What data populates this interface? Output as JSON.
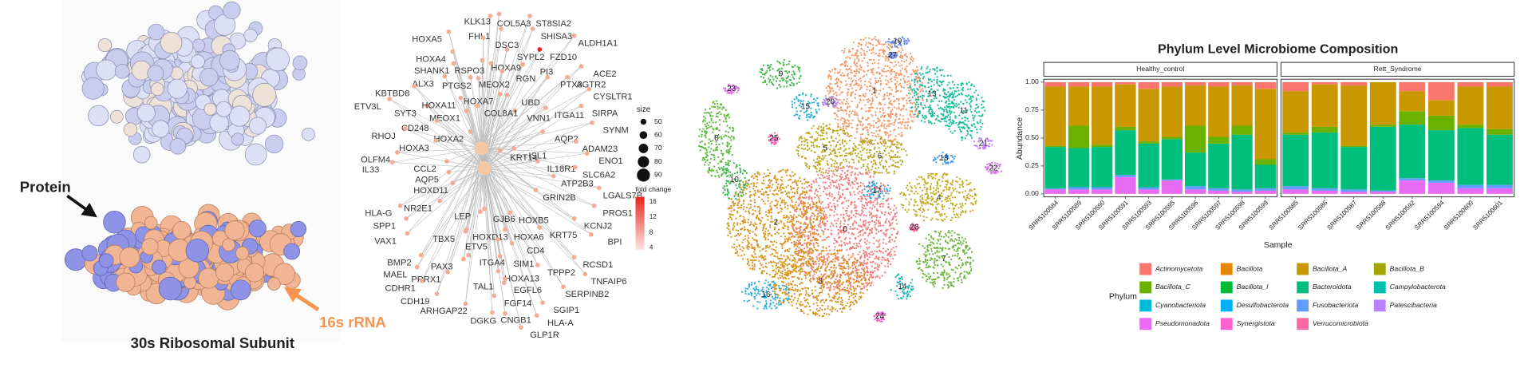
{
  "ribosome": {
    "protein_label": "Protein",
    "rrna_label": "16s rRNA",
    "title": "30s Ribosomal Subunit"
  },
  "network": {
    "genes": [
      "KLK13",
      "COL5A3",
      "ST8SIA2",
      "HOXA5",
      "FHL1",
      "DSC3",
      "SHISA3",
      "ALDH1A1",
      "FZD10",
      "HOXA4",
      "RSPO3",
      "SYPL2",
      "HOXA9",
      "PI3",
      "ACE2",
      "SHANK1",
      "ALX3",
      "PTGS2",
      "MEOX2",
      "RGN",
      "PTX3",
      "AGTR2",
      "CYSLTR1",
      "KBTBD8",
      "HOXA7",
      "UBD",
      "ETV3L",
      "SYT3",
      "HOXA11",
      "VNN1",
      "ITGA11",
      "SIRPA",
      "COL8A1",
      "MEOX1",
      "CD248",
      "SYNM",
      "RHOJ",
      "HOXA2",
      "AQP2",
      "HOXA3",
      "ADAM23",
      "ISL1",
      "OLFM4",
      "ENO1",
      "IL18R1",
      "CCL2",
      "KRT14",
      "SLC6A2",
      "IL33",
      "AQP5",
      "ATP2B3",
      "HLA-G",
      "HOXD11",
      "GRIN2B",
      "LGALS7B",
      "NR2E1",
      "LEP",
      "GJB6",
      "HOXB5",
      "PROS1",
      "KRT75",
      "SPP1",
      "HOXD13",
      "HOXA6",
      "KCNJ2",
      "VAX1",
      "TBX5",
      "ETV5",
      "CD4",
      "BPI",
      "BMP2",
      "ITGA4",
      "SIM1",
      "RCSD1",
      "PAX3",
      "TPPP2",
      "MAEL",
      "HOXA13",
      "TNFAIP6",
      "PRRX1",
      "EGFL6",
      "CDHR1",
      "TAL1",
      "SERPINB2",
      "CDH19",
      "FGF14",
      "ARHGAP22",
      "SGIP1",
      "DGKG",
      "CNGB1",
      "HLA-A",
      "GLP1R"
    ],
    "size_legend": {
      "title": "size",
      "values": [
        50,
        60,
        70,
        80,
        90
      ]
    },
    "color_legend": {
      "title": "fold change",
      "values": [
        16,
        12,
        8,
        4
      ]
    }
  },
  "tsne": {
    "clusters": [
      "0",
      "1",
      "2",
      "3",
      "4",
      "5",
      "6",
      "7",
      "8",
      "9",
      "10",
      "11",
      "13",
      "14",
      "15",
      "16",
      "17",
      "18",
      "19",
      "20",
      "21",
      "22",
      "23",
      "24",
      "25",
      "26",
      "27"
    ]
  },
  "chart_data": {
    "type": "bar",
    "title": "Phylum Level Microbiome Composition",
    "x_label": "Sample",
    "y_label": "Abundance",
    "legend_title": "Phylum",
    "categories": [
      "SRR5100584",
      "SRR5100589",
      "SRR5100590",
      "SRR5100591",
      "SRR5100593",
      "SRR5100595",
      "SRR5100596",
      "SRR5100597",
      "SRR5100598",
      "SRR5100599",
      "SRR5100585",
      "SRR5100586",
      "SRR5100587",
      "SRR5100588",
      "SRR5100592",
      "SRR5100594",
      "SRR5100600",
      "SRR5100601"
    ],
    "facet": [
      "Healthy_control",
      "Healthy_control",
      "Healthy_control",
      "Healthy_control",
      "Healthy_control",
      "Healthy_control",
      "Healthy_control",
      "Healthy_control",
      "Healthy_control",
      "Healthy_control",
      "Rett_Syndrome",
      "Rett_Syndrome",
      "Rett_Syndrome",
      "Rett_Syndrome",
      "Rett_Syndrome",
      "Rett_Syndrome",
      "Rett_Syndrome",
      "Rett_Syndrome"
    ],
    "ylim": [
      0,
      1
    ],
    "yticks": [
      {
        "value": 0,
        "label": "0.00"
      },
      {
        "value": 0.25,
        "label": "0.25"
      },
      {
        "value": 0.5,
        "label": "0.50"
      },
      {
        "value": 0.75,
        "label": "0.75"
      },
      {
        "value": 1,
        "label": "1.00"
      }
    ],
    "stacked": true,
    "series": [
      {
        "name": "Actinomycetota",
        "color": "#F8766D",
        "values": [
          0.04,
          0.04,
          0.04,
          0.02,
          0.06,
          0.04,
          0.03,
          0.04,
          0.03,
          0.06,
          0.08,
          0.02,
          0.03,
          0,
          0.08,
          0.16,
          0.04,
          0.04
        ]
      },
      {
        "name": "Bacillota",
        "color": "#E58700",
        "values": [
          0,
          0,
          0,
          0,
          0,
          0,
          0,
          0,
          0,
          0,
          0,
          0,
          0,
          0,
          0,
          0,
          0,
          0
        ]
      },
      {
        "name": "Bacillota_A",
        "color": "#C99800",
        "values": [
          0.53,
          0.35,
          0.52,
          0.38,
          0.47,
          0.45,
          0.36,
          0.45,
          0.36,
          0.63,
          0.37,
          0.38,
          0.54,
          0.38,
          0.18,
          0.14,
          0.34,
          0.38
        ]
      },
      {
        "name": "Bacillota_B",
        "color": "#A3A500",
        "values": [
          0,
          0,
          0,
          0,
          0,
          0,
          0,
          0,
          0,
          0,
          0,
          0,
          0,
          0,
          0,
          0,
          0,
          0
        ]
      },
      {
        "name": "Bacillota_C",
        "color": "#6BB100",
        "values": [
          0.01,
          0.2,
          0.02,
          0.03,
          0.02,
          0.02,
          0.24,
          0.06,
          0.08,
          0.05,
          0.02,
          0.05,
          0.01,
          0.02,
          0.12,
          0.13,
          0.03,
          0.05
        ]
      },
      {
        "name": "Bacillota_I",
        "color": "#00BA38",
        "values": [
          0,
          0,
          0,
          0,
          0,
          0,
          0,
          0,
          0,
          0,
          0,
          0,
          0,
          0,
          0,
          0,
          0,
          0
        ]
      },
      {
        "name": "Bacteroidota",
        "color": "#00BF7D",
        "values": [
          0.37,
          0.35,
          0.36,
          0.4,
          0.39,
          0.36,
          0.3,
          0.4,
          0.49,
          0.21,
          0.46,
          0.5,
          0.38,
          0.57,
          0.48,
          0.45,
          0.51,
          0.45
        ]
      },
      {
        "name": "Campylobacterota",
        "color": "#00C0AF",
        "values": [
          0,
          0,
          0,
          0,
          0,
          0,
          0,
          0,
          0,
          0,
          0,
          0,
          0,
          0,
          0,
          0,
          0,
          0
        ]
      },
      {
        "name": "Cyanobacteriota",
        "color": "#00BCD8",
        "values": [
          0,
          0,
          0,
          0,
          0,
          0,
          0,
          0,
          0,
          0,
          0,
          0,
          0,
          0,
          0,
          0,
          0,
          0
        ]
      },
      {
        "name": "Desulfobacterota",
        "color": "#00B0F6",
        "values": [
          0,
          0,
          0,
          0,
          0,
          0,
          0,
          0,
          0,
          0,
          0,
          0,
          0,
          0,
          0,
          0,
          0,
          0
        ]
      },
      {
        "name": "Fusobacteriota",
        "color": "#619CFF",
        "values": [
          0.01,
          0.02,
          0.02,
          0.02,
          0.02,
          0.01,
          0.03,
          0.02,
          0.02,
          0.02,
          0.03,
          0.02,
          0.02,
          0.01,
          0.02,
          0.02,
          0.03,
          0.03
        ]
      },
      {
        "name": "Patescibacteria",
        "color": "#B983FF",
        "values": [
          0,
          0,
          0,
          0,
          0,
          0,
          0,
          0,
          0,
          0,
          0,
          0,
          0,
          0,
          0,
          0,
          0,
          0
        ]
      },
      {
        "name": "Pseudomonadota",
        "color": "#E76BF3",
        "values": [
          0.04,
          0.04,
          0.04,
          0.15,
          0.04,
          0.12,
          0.04,
          0.03,
          0.02,
          0.03,
          0.04,
          0.03,
          0.02,
          0.02,
          0.12,
          0.1,
          0.05,
          0.05
        ]
      },
      {
        "name": "Synergistota",
        "color": "#FD61D1",
        "values": [
          0,
          0,
          0,
          0,
          0,
          0,
          0,
          0,
          0,
          0,
          0,
          0,
          0,
          0,
          0,
          0,
          0,
          0
        ]
      },
      {
        "name": "Verrucomicrobiota",
        "color": "#FF67A4",
        "values": [
          0,
          0,
          0,
          0,
          0,
          0,
          0,
          0,
          0,
          0,
          0,
          0,
          0,
          0,
          0,
          0,
          0,
          0
        ]
      }
    ]
  }
}
